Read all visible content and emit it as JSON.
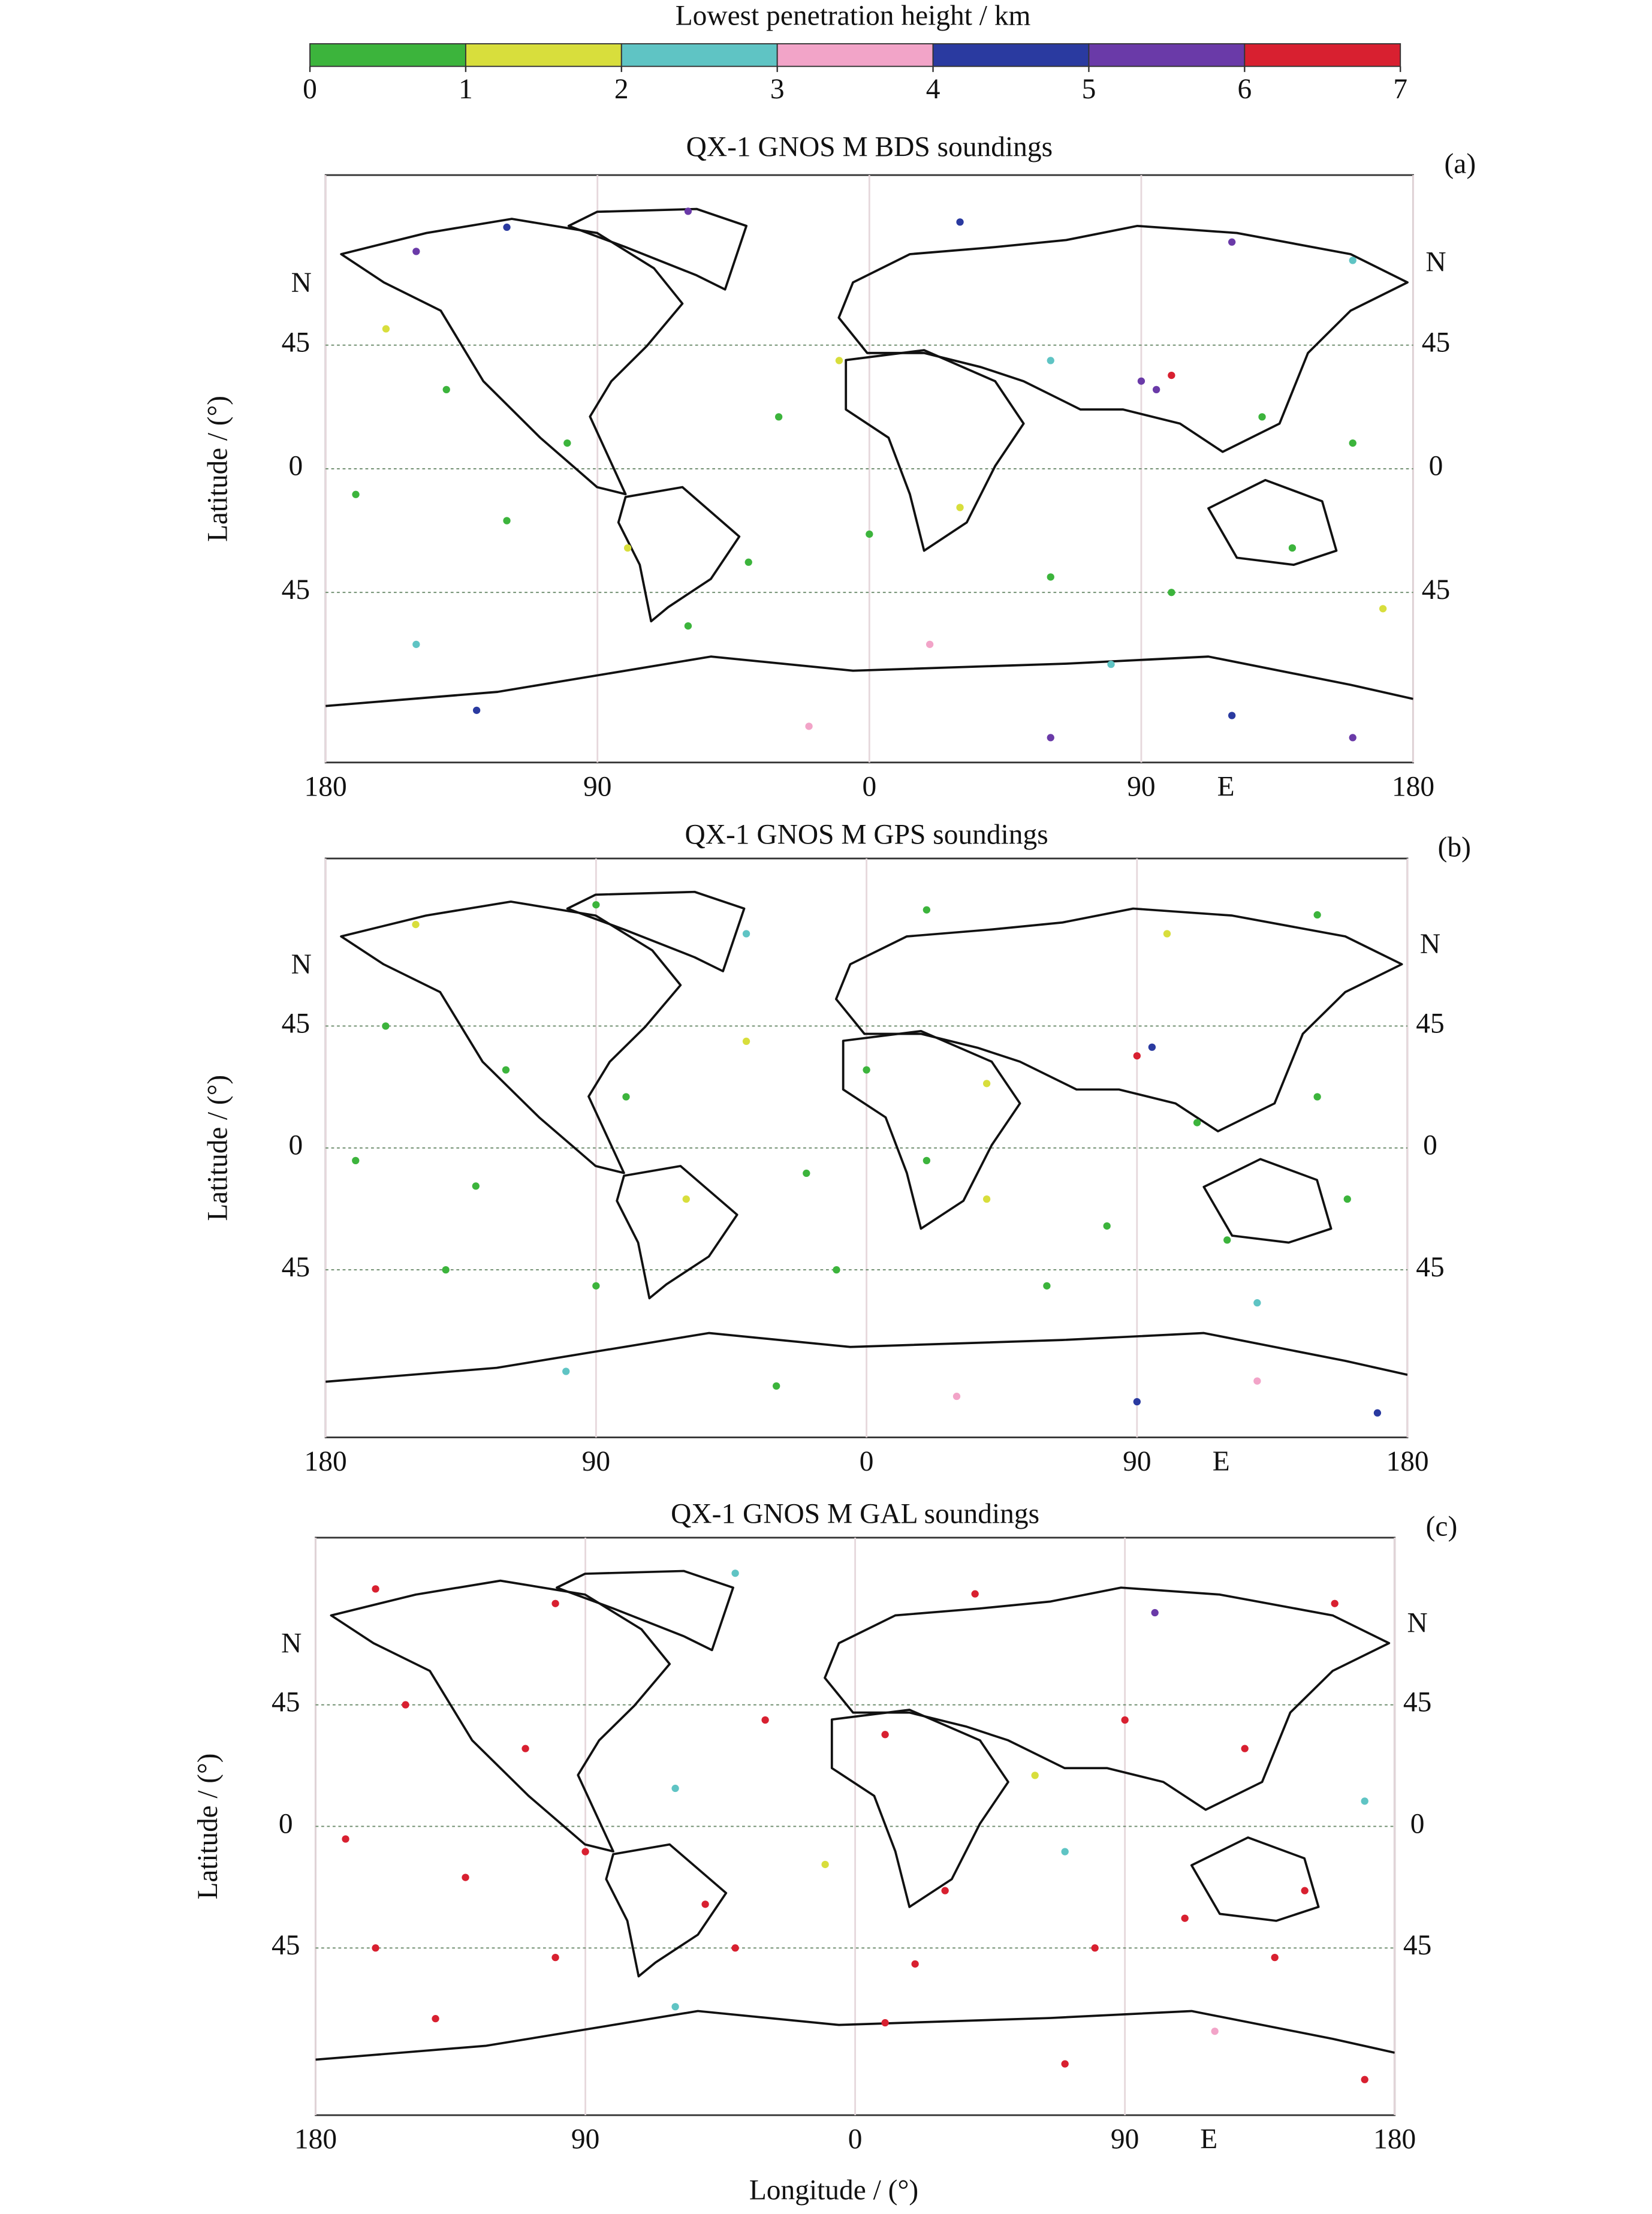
{
  "colorbar": {
    "title": "Lowest penetration height / km",
    "ticks": [
      0,
      1,
      2,
      3,
      4,
      5,
      6,
      7
    ],
    "colors": [
      "#3cb43c",
      "#d8de3c",
      "#5fc4c4",
      "#f2a4c8",
      "#2a3aa0",
      "#6a3aa8",
      "#d82030"
    ]
  },
  "chart_data": [
    {
      "type": "scatter",
      "title": "QX-1 GNOS M BDS soundings",
      "panel_label": "(a)",
      "ylabel": "Latitude / (°)",
      "projection": "miller",
      "grid": true,
      "north_label": "N",
      "east_label": "E",
      "xlim": [
        -180,
        180
      ],
      "ylim": [
        -84,
        84
      ],
      "xticks": [
        {
          "value": -180,
          "label": "180"
        },
        {
          "value": -90,
          "label": "90"
        },
        0,
        90,
        180
      ],
      "yticks": [
        {
          "value": -45,
          "label": "45"
        },
        0,
        45
      ],
      "lon": [
        -150,
        -120,
        -60,
        30,
        120,
        160,
        -160,
        -140,
        -100,
        -30,
        -10,
        60,
        90,
        95,
        100,
        130,
        160,
        -170,
        -120,
        -80,
        -40,
        0,
        30,
        60,
        100,
        140,
        170,
        -150,
        -60,
        20,
        80,
        -130,
        -20,
        60,
        120,
        160
      ],
      "lat": [
        70,
        75,
        78,
        76,
        72,
        68,
        50,
        30,
        10,
        20,
        40,
        40,
        33,
        30,
        35,
        20,
        10,
        -10,
        -20,
        -30,
        -35,
        -25,
        -15,
        -40,
        -45,
        -30,
        -50,
        -60,
        -55,
        -60,
        -65,
        -75,
        -78,
        -80,
        -76,
        -80
      ],
      "height": [
        5.5,
        4.5,
        5.2,
        4.3,
        5.8,
        2.5,
        1.5,
        0.5,
        0.4,
        0.6,
        1.4,
        2.3,
        5.5,
        5.3,
        6.5,
        0.7,
        0.3,
        0.5,
        0.4,
        1.6,
        0.5,
        0.3,
        1.2,
        0.6,
        0.4,
        0.5,
        1.5,
        2.4,
        0.8,
        3.4,
        2.6,
        4.4,
        3.5,
        5.4,
        4.2,
        5.6
      ]
    },
    {
      "type": "scatter",
      "title": "QX-1 GNOS M GPS soundings",
      "panel_label": "(b)",
      "ylabel": "Latitude / (°)",
      "projection": "miller",
      "grid": true,
      "north_label": "N",
      "east_label": "E",
      "xlim": [
        -180,
        180
      ],
      "ylim": [
        -84,
        84
      ],
      "xticks": [
        {
          "value": -180,
          "label": "180"
        },
        {
          "value": -90,
          "label": "90"
        },
        0,
        90,
        180
      ],
      "yticks": [
        {
          "value": -45,
          "label": "45"
        },
        0,
        45
      ],
      "lon": [
        -150,
        -90,
        -40,
        20,
        100,
        150,
        -160,
        -120,
        -80,
        -40,
        0,
        40,
        90,
        95,
        110,
        150,
        -170,
        -130,
        -60,
        -20,
        20,
        40,
        80,
        120,
        160,
        -140,
        -90,
        -10,
        60,
        130,
        -100,
        -30,
        30,
        90,
        130,
        170
      ],
      "lat": [
        72,
        76,
        70,
        75,
        70,
        74,
        45,
        30,
        20,
        40,
        30,
        25,
        35,
        38,
        10,
        20,
        -5,
        -15,
        -20,
        -10,
        -5,
        -20,
        -30,
        -35,
        -20,
        -45,
        -50,
        -45,
        -50,
        -55,
        -72,
        -75,
        -77,
        -78,
        -74,
        -80
      ],
      "height": [
        1.4,
        0.6,
        2.2,
        0.5,
        1.3,
        0.4,
        0.5,
        0.4,
        0.6,
        1.5,
        0.3,
        1.6,
        6.3,
        4.6,
        0.5,
        0.4,
        0.6,
        0.3,
        1.2,
        0.4,
        0.5,
        1.4,
        0.3,
        0.6,
        0.5,
        0.4,
        0.7,
        0.3,
        0.5,
        2.4,
        2.6,
        0.8,
        3.3,
        4.5,
        3.6,
        4.3
      ]
    },
    {
      "type": "scatter",
      "title": "QX-1 GNOS M GAL soundings",
      "panel_label": "(c)",
      "ylabel": "Latitude / (°)",
      "xlabel": "Longitude / (°)",
      "projection": "miller",
      "grid": true,
      "north_label": "N",
      "east_label": "E",
      "xlim": [
        -180,
        180
      ],
      "ylim": [
        -84,
        84
      ],
      "xticks": [
        {
          "value": -180,
          "label": "180"
        },
        {
          "value": -90,
          "label": "90"
        },
        0,
        90,
        180
      ],
      "yticks": [
        {
          "value": -45,
          "label": "45"
        },
        0,
        45
      ],
      "lon": [
        -160,
        -100,
        -40,
        40,
        100,
        160,
        -150,
        -110,
        -60,
        -30,
        10,
        60,
        90,
        130,
        170,
        -170,
        -130,
        -90,
        -50,
        -10,
        30,
        70,
        110,
        150,
        -160,
        -100,
        -40,
        20,
        80,
        140,
        -140,
        -60,
        10,
        70,
        120,
        170
      ],
      "lat": [
        75,
        72,
        78,
        74,
        70,
        72,
        45,
        30,
        15,
        40,
        35,
        20,
        40,
        30,
        10,
        -5,
        -20,
        -10,
        -30,
        -15,
        -25,
        -10,
        -35,
        -25,
        -45,
        -48,
        -45,
        -50,
        -45,
        -48,
        -65,
        -62,
        -66,
        -75,
        -68,
        -78
      ],
      "height": [
        6.5,
        6.3,
        2.4,
        6.6,
        5.3,
        6.4,
        6.2,
        6.7,
        2.5,
        6.1,
        6.4,
        1.6,
        6.5,
        6.3,
        2.3,
        6.6,
        6.2,
        6.4,
        6.3,
        1.3,
        6.5,
        2.6,
        6.4,
        6.1,
        6.6,
        6.3,
        6.5,
        6.2,
        6.7,
        6.4,
        6.3,
        2.3,
        6.5,
        6.2,
        3.4,
        6.6
      ]
    }
  ]
}
